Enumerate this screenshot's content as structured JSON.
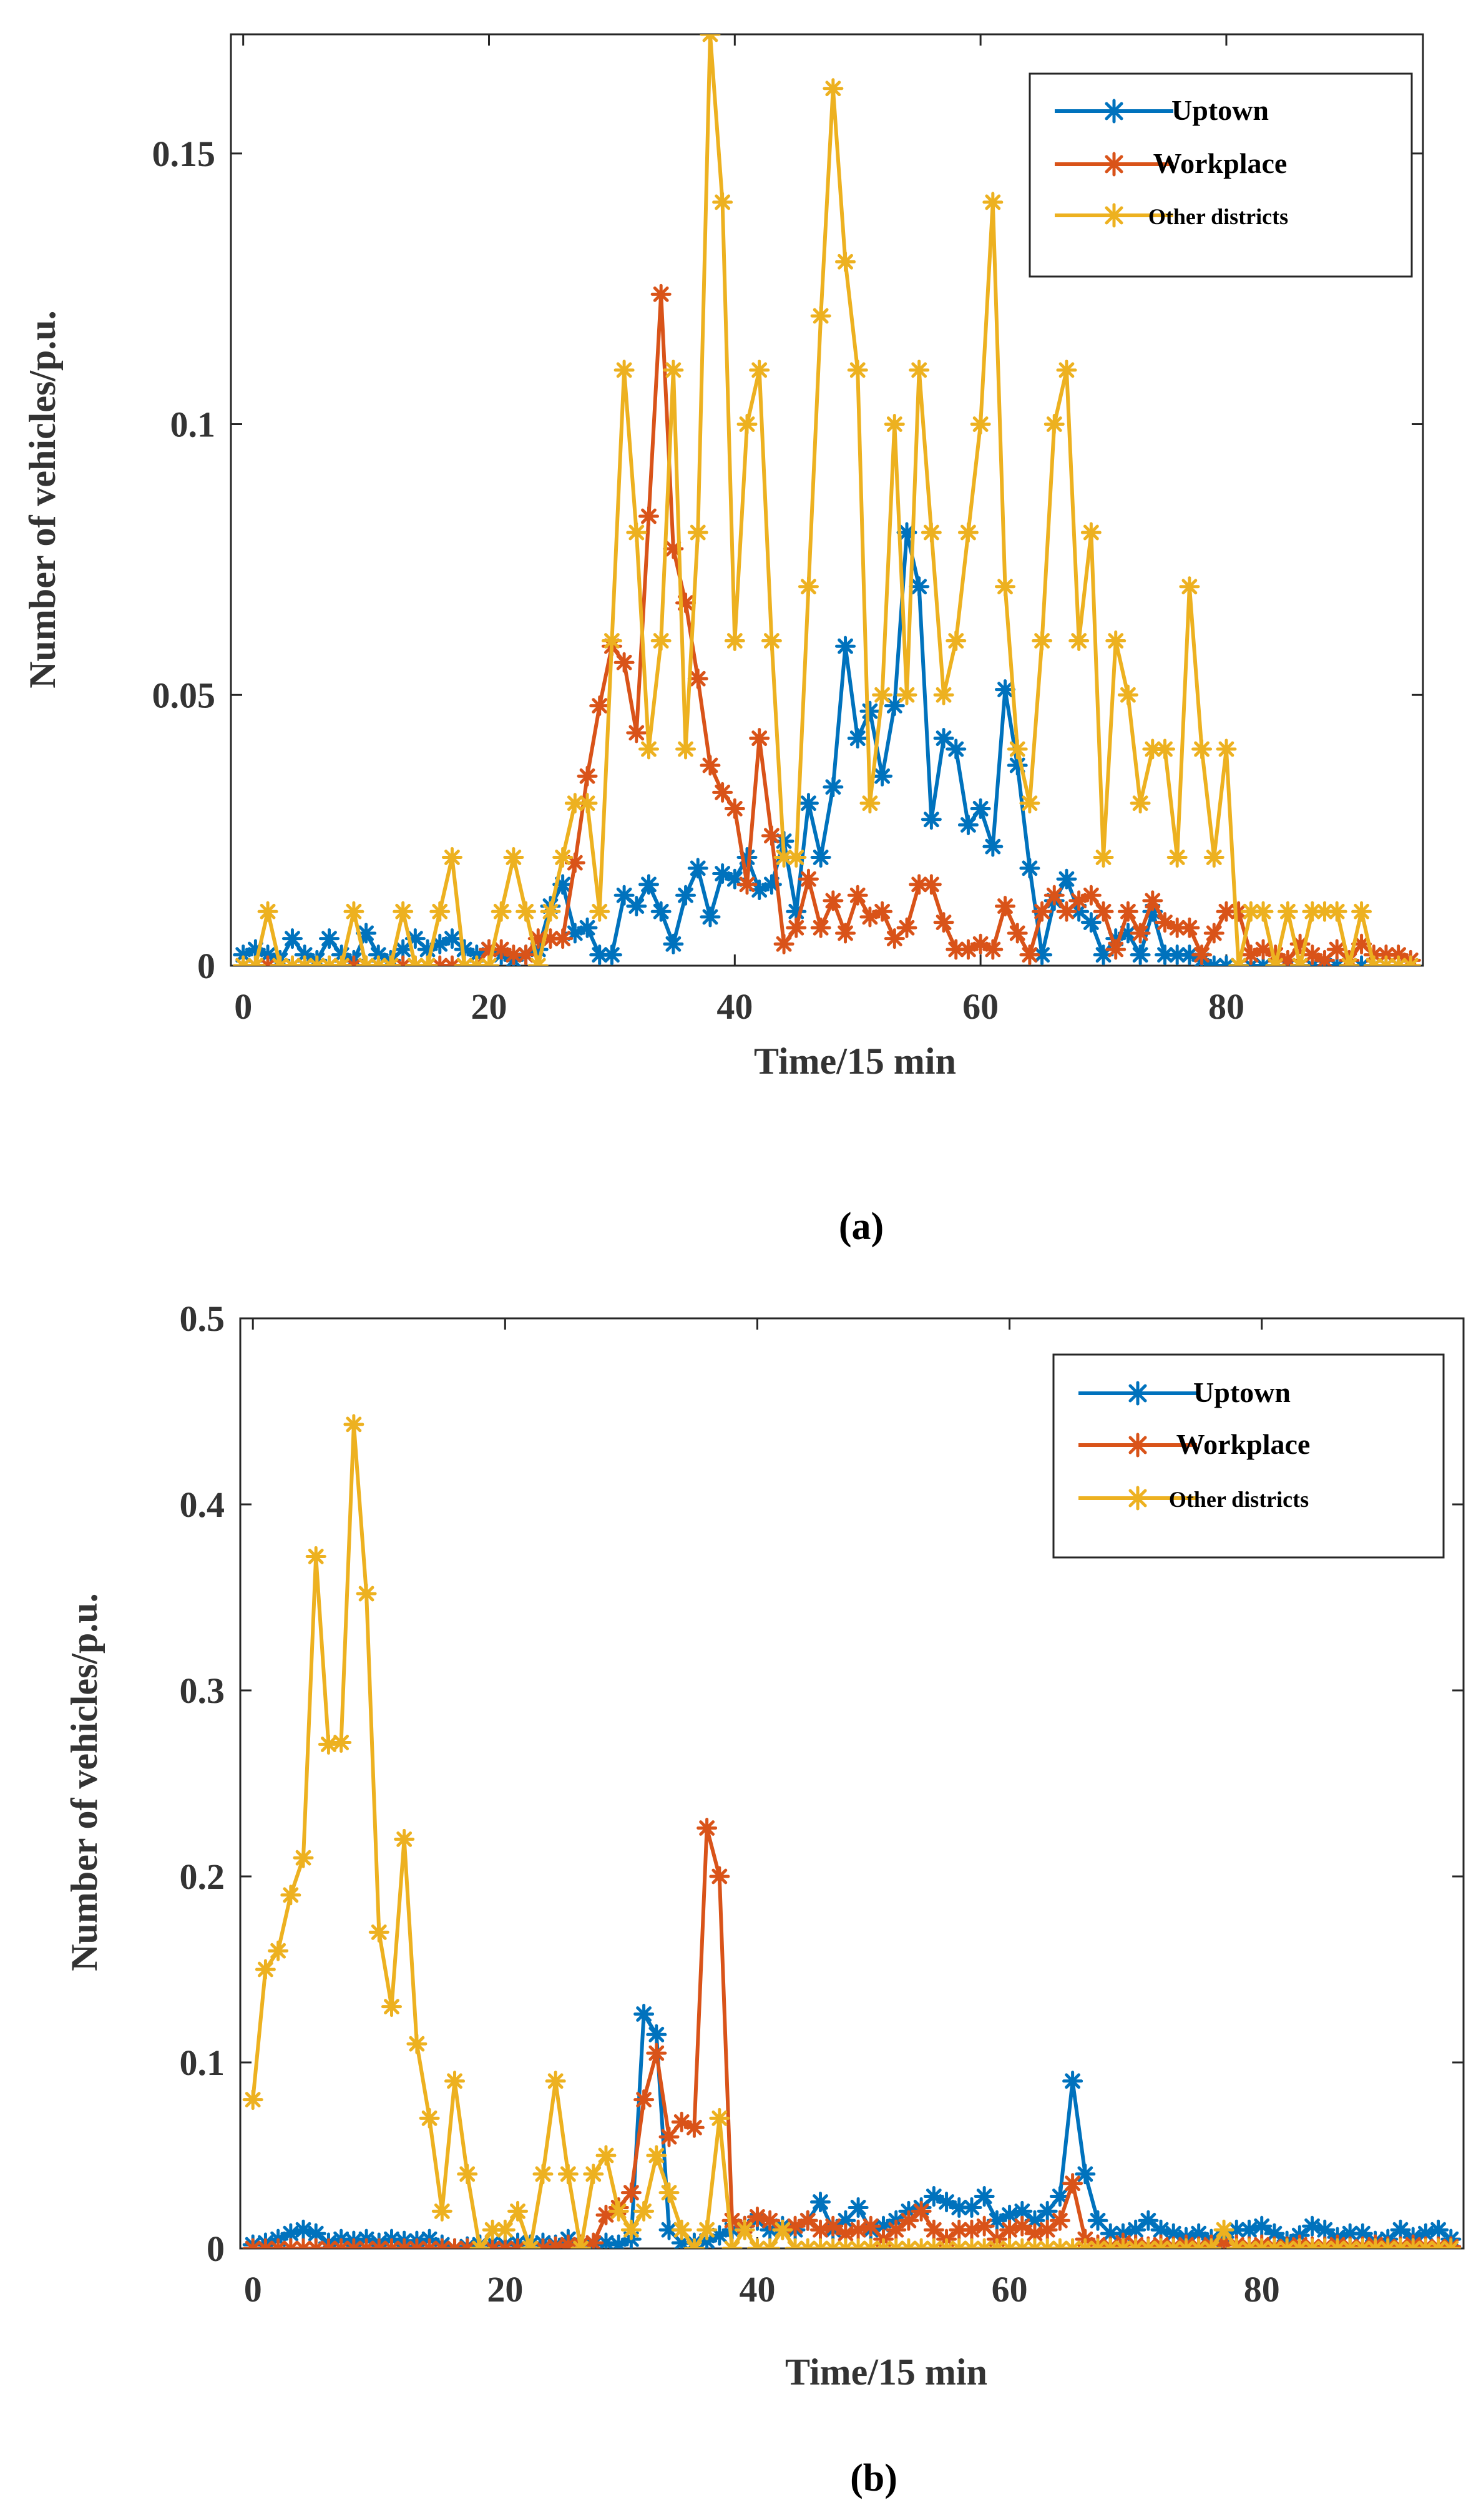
{
  "figure": {
    "panels": [
      {
        "label": "(a)"
      },
      {
        "label": "(b)"
      }
    ]
  },
  "chart_data": [
    {
      "type": "line",
      "panel": "(a)",
      "xlabel": "Time/15 min",
      "ylabel": "Number of vehicles/p.u.",
      "xlim": [
        -1,
        96
      ],
      "ylim": [
        0,
        0.172
      ],
      "xticks": [
        0,
        20,
        40,
        60,
        80
      ],
      "xtick_labels": [
        "0",
        "20",
        "40",
        "60",
        "80"
      ],
      "yticks": [
        0,
        0.05,
        0.1,
        0.15
      ],
      "ytick_labels": [
        "0",
        "0.05",
        "0.1",
        "0.15"
      ],
      "grid": false,
      "legend_position": "top-right",
      "marker": "asterisk",
      "x": [
        0,
        1,
        2,
        3,
        4,
        5,
        6,
        7,
        8,
        9,
        10,
        11,
        12,
        13,
        14,
        15,
        16,
        17,
        18,
        19,
        20,
        21,
        22,
        23,
        24,
        25,
        26,
        27,
        28,
        29,
        30,
        31,
        32,
        33,
        34,
        35,
        36,
        37,
        38,
        39,
        40,
        41,
        42,
        43,
        44,
        45,
        46,
        47,
        48,
        49,
        50,
        51,
        52,
        53,
        54,
        55,
        56,
        57,
        58,
        59,
        60,
        61,
        62,
        63,
        64,
        65,
        66,
        67,
        68,
        69,
        70,
        71,
        72,
        73,
        74,
        75,
        76,
        77,
        78,
        79,
        80,
        81,
        82,
        83,
        84,
        85,
        86,
        87,
        88,
        89,
        90,
        91,
        92,
        93,
        94,
        95
      ],
      "series": [
        {
          "name": "Uptown",
          "color": "#0072BD",
          "values": [
            0.002,
            0.003,
            0.002,
            0.001,
            0.005,
            0.002,
            0.001,
            0.005,
            0.002,
            0.001,
            0.006,
            0.002,
            0.001,
            0.003,
            0.005,
            0.003,
            0.004,
            0.005,
            0.003,
            0.002,
            0.003,
            0.002,
            0.001,
            0.002,
            0.003,
            0.011,
            0.015,
            0.006,
            0.007,
            0.002,
            0.002,
            0.013,
            0.011,
            0.015,
            0.01,
            0.004,
            0.013,
            0.018,
            0.009,
            0.017,
            0.016,
            0.02,
            0.014,
            0.015,
            0.023,
            0.01,
            0.03,
            0.02,
            0.033,
            0.059,
            0.042,
            0.047,
            0.035,
            0.048,
            0.08,
            0.07,
            0.027,
            0.042,
            0.04,
            0.026,
            0.029,
            0.022,
            0.051,
            0.037,
            0.018,
            0.002,
            0.012,
            0.016,
            0.01,
            0.008,
            0.002,
            0.005,
            0.006,
            0.002,
            0.01,
            0.002,
            0.002,
            0.002,
            0.001,
            0,
            0,
            0,
            0,
            0,
            0,
            0,
            0,
            0,
            0,
            0,
            0,
            0,
            0,
            0,
            0,
            0
          ]
        },
        {
          "name": "Workplace",
          "color": "#D95319",
          "values": [
            0,
            0,
            0,
            0,
            0,
            0,
            0,
            0,
            0,
            0,
            0,
            0,
            0,
            0,
            0,
            0,
            0,
            0,
            0,
            0,
            0.003,
            0.003,
            0.002,
            0.002,
            0.005,
            0.005,
            0.005,
            0.019,
            0.035,
            0.048,
            0.059,
            0.056,
            0.043,
            0.083,
            0.124,
            0.077,
            0.067,
            0.053,
            0.037,
            0.032,
            0.029,
            0.015,
            0.042,
            0.024,
            0.004,
            0.007,
            0.016,
            0.007,
            0.012,
            0.006,
            0.013,
            0.009,
            0.01,
            0.005,
            0.007,
            0.015,
            0.015,
            0.008,
            0.003,
            0.003,
            0.004,
            0.003,
            0.011,
            0.006,
            0.002,
            0.01,
            0.013,
            0.01,
            0.012,
            0.013,
            0.01,
            0.003,
            0.01,
            0.006,
            0.012,
            0.008,
            0.007,
            0.007,
            0.002,
            0.006,
            0.01,
            0.01,
            0.002,
            0.003,
            0.002,
            0.001,
            0.004,
            0.002,
            0.001,
            0.003,
            0.001,
            0.004,
            0.002,
            0.002,
            0.002,
            0.001
          ]
        },
        {
          "name": "Other districts",
          "color": "#EDB120",
          "values": [
            0,
            0,
            0.01,
            0,
            0,
            0,
            0,
            0,
            0,
            0.01,
            0,
            0,
            0,
            0.01,
            0,
            0,
            0.01,
            0.02,
            0,
            0,
            0,
            0.01,
            0.02,
            0.01,
            0,
            0.01,
            0.02,
            0.03,
            0.03,
            0.01,
            0.06,
            0.11,
            0.08,
            0.04,
            0.06,
            0.11,
            0.04,
            0.08,
            0.172,
            0.141,
            0.06,
            0.1,
            0.11,
            0.06,
            0.02,
            0.02,
            0.07,
            0.12,
            0.162,
            0.13,
            0.11,
            0.03,
            0.05,
            0.1,
            0.05,
            0.11,
            0.08,
            0.05,
            0.06,
            0.08,
            0.1,
            0.141,
            0.07,
            0.04,
            0.03,
            0.06,
            0.1,
            0.11,
            0.06,
            0.08,
            0.02,
            0.06,
            0.05,
            0.03,
            0.04,
            0.04,
            0.02,
            0.07,
            0.04,
            0.02,
            0.04,
            0,
            0.01,
            0.01,
            0,
            0.01,
            0,
            0.01,
            0.01,
            0.01,
            0,
            0.01,
            0,
            0,
            0,
            0
          ]
        }
      ]
    },
    {
      "type": "line",
      "panel": "(b)",
      "xlabel": "Time/15 min",
      "ylabel": "Number of vehicles/p.u.",
      "xlim": [
        -1,
        96
      ],
      "ylim": [
        0,
        0.5
      ],
      "xticks": [
        0,
        20,
        40,
        60,
        80
      ],
      "xtick_labels": [
        "0",
        "20",
        "40",
        "60",
        "80"
      ],
      "yticks": [
        0,
        0.1,
        0.2,
        0.3,
        0.4,
        0.5
      ],
      "ytick_labels": [
        "0",
        "0.1",
        "0.2",
        "0.3",
        "0.4",
        "0.5"
      ],
      "grid": false,
      "legend_position": "top-right",
      "marker": "asterisk",
      "x": [
        0,
        1,
        2,
        3,
        4,
        5,
        6,
        7,
        8,
        9,
        10,
        11,
        12,
        13,
        14,
        15,
        16,
        17,
        18,
        19,
        20,
        21,
        22,
        23,
        24,
        25,
        26,
        27,
        28,
        29,
        30,
        31,
        32,
        33,
        34,
        35,
        36,
        37,
        38,
        39,
        40,
        41,
        42,
        43,
        44,
        45,
        46,
        47,
        48,
        49,
        50,
        51,
        52,
        53,
        54,
        55,
        56,
        57,
        58,
        59,
        60,
        61,
        62,
        63,
        64,
        65,
        66,
        67,
        68,
        69,
        70,
        71,
        72,
        73,
        74,
        75,
        76,
        77,
        78,
        79,
        80,
        81,
        82,
        83,
        84,
        85,
        86,
        87,
        88,
        89,
        90,
        91,
        92,
        93,
        94,
        95
      ],
      "series": [
        {
          "name": "Uptown",
          "color": "#0072BD",
          "values": [
            0.002,
            0.003,
            0.005,
            0.008,
            0.01,
            0.008,
            0.003,
            0.005,
            0.004,
            0.005,
            0.003,
            0.005,
            0.004,
            0.004,
            0.005,
            0.002,
            0,
            0.001,
            0.002,
            0.003,
            0.002,
            0.003,
            0.002,
            0.003,
            0.002,
            0.005,
            0.002,
            0.002,
            0.003,
            0.002,
            0.005,
            0.126,
            0.115,
            0.01,
            0.003,
            0.003,
            0.004,
            0.007,
            0.01,
            0.012,
            0.015,
            0.01,
            0.012,
            0.01,
            0.015,
            0.025,
            0.01,
            0.015,
            0.022,
            0.01,
            0.012,
            0.015,
            0.02,
            0.022,
            0.028,
            0.025,
            0.022,
            0.022,
            0.028,
            0.015,
            0.018,
            0.02,
            0.015,
            0.02,
            0.028,
            0.09,
            0.04,
            0.015,
            0.008,
            0.008,
            0.01,
            0.015,
            0.01,
            0.008,
            0.006,
            0.008,
            0.005,
            0.006,
            0.01,
            0.01,
            0.012,
            0.008,
            0.004,
            0.007,
            0.012,
            0.01,
            0.006,
            0.008,
            0.008,
            0.004,
            0.005,
            0.01,
            0.006,
            0.008,
            0.01,
            0.005
          ]
        },
        {
          "name": "Workplace",
          "color": "#D95319",
          "values": [
            0,
            0,
            0,
            0,
            0,
            0,
            0,
            0,
            0,
            0,
            0,
            0,
            0,
            0,
            0,
            0,
            0,
            0,
            0,
            0,
            0,
            0,
            0,
            0,
            0.001,
            0.002,
            0.002,
            0.003,
            0.018,
            0.022,
            0.03,
            0.08,
            0.105,
            0.06,
            0.068,
            0.065,
            0.226,
            0.2,
            0.015,
            0.012,
            0.017,
            0.015,
            0.01,
            0.012,
            0.015,
            0.01,
            0.012,
            0.008,
            0.01,
            0.012,
            0.005,
            0.01,
            0.015,
            0.02,
            0.01,
            0.005,
            0.01,
            0.01,
            0.012,
            0.005,
            0.01,
            0.012,
            0.008,
            0.01,
            0.015,
            0.035,
            0.005,
            0.002,
            0.001,
            0.003,
            0.002,
            0.001,
            0.002,
            0.001,
            0.002,
            0.001,
            0.002,
            0.003,
            0.002,
            0.001,
            0.002,
            0.001,
            0.001,
            0.002,
            0.001,
            0.001,
            0.002,
            0.001,
            0.001,
            0.002,
            0.001,
            0.001,
            0.002,
            0.001,
            0.001,
            0.001
          ]
        },
        {
          "name": "Other districts",
          "color": "#EDB120",
          "values": [
            0.08,
            0.15,
            0.16,
            0.19,
            0.21,
            0.372,
            0.271,
            0.272,
            0.443,
            0.352,
            0.17,
            0.13,
            0.22,
            0.11,
            0.07,
            0.02,
            0.09,
            0.04,
            0,
            0.01,
            0.01,
            0.02,
            0,
            0.04,
            0.09,
            0.04,
            0,
            0.04,
            0.05,
            0.02,
            0.01,
            0.02,
            0.05,
            0.03,
            0.01,
            0,
            0.01,
            0.07,
            0,
            0.01,
            0,
            0,
            0.01,
            0,
            0,
            0,
            0,
            0,
            0,
            0,
            0,
            0,
            0,
            0,
            0,
            0,
            0,
            0,
            0,
            0,
            0,
            0,
            0,
            0,
            0,
            0,
            0,
            0,
            0,
            0,
            0,
            0,
            0,
            0,
            0,
            0,
            0,
            0.01,
            0,
            0,
            0,
            0,
            0,
            0,
            0,
            0,
            0,
            0,
            0,
            0,
            0,
            0,
            0,
            0,
            0,
            0
          ]
        }
      ]
    }
  ]
}
